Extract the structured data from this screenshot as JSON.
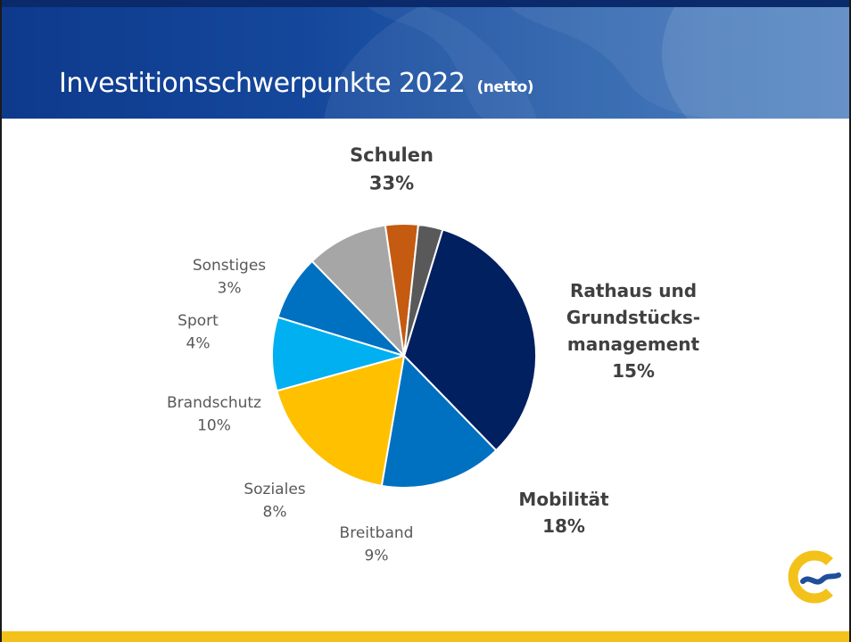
{
  "header": {
    "title": "Investitionsschwerpunkte 2022",
    "subtitle": "(netto)"
  },
  "colors": {
    "header_blue": "#14479b",
    "accent_yellow": "#f3c21a"
  },
  "logo": {
    "icon": "city-logo-icon"
  },
  "chart_data": {
    "type": "pie",
    "title": "",
    "unit": "%",
    "start_angle_deg": -73,
    "direction": "clockwise",
    "slices": [
      {
        "name": "Schulen",
        "value": 33,
        "value_label": "33%",
        "color": "#002060",
        "emphasis": true
      },
      {
        "name": "Rathaus und Grundstücks-management",
        "label_lines": [
          "Rathaus und",
          "Grundstücks-",
          "management"
        ],
        "value": 15,
        "value_label": "15%",
        "color": "#0070c0",
        "emphasis": true
      },
      {
        "name": "Mobilität",
        "value": 18,
        "value_label": "18%",
        "color": "#ffc000",
        "emphasis": true
      },
      {
        "name": "Breitband",
        "value": 9,
        "value_label": "9%",
        "color": "#00b0f0",
        "emphasis": false
      },
      {
        "name": "Soziales",
        "value": 8,
        "value_label": "8%",
        "color": "#0070c0",
        "emphasis": false
      },
      {
        "name": "Brandschutz",
        "value": 10,
        "value_label": "10%",
        "color": "#a6a6a6",
        "emphasis": false
      },
      {
        "name": "Sport",
        "value": 4,
        "value_label": "4%",
        "color": "#c55a11",
        "emphasis": false
      },
      {
        "name": "Sonstiges",
        "value": 3,
        "value_label": "3%",
        "color": "#595959",
        "emphasis": false
      }
    ]
  }
}
